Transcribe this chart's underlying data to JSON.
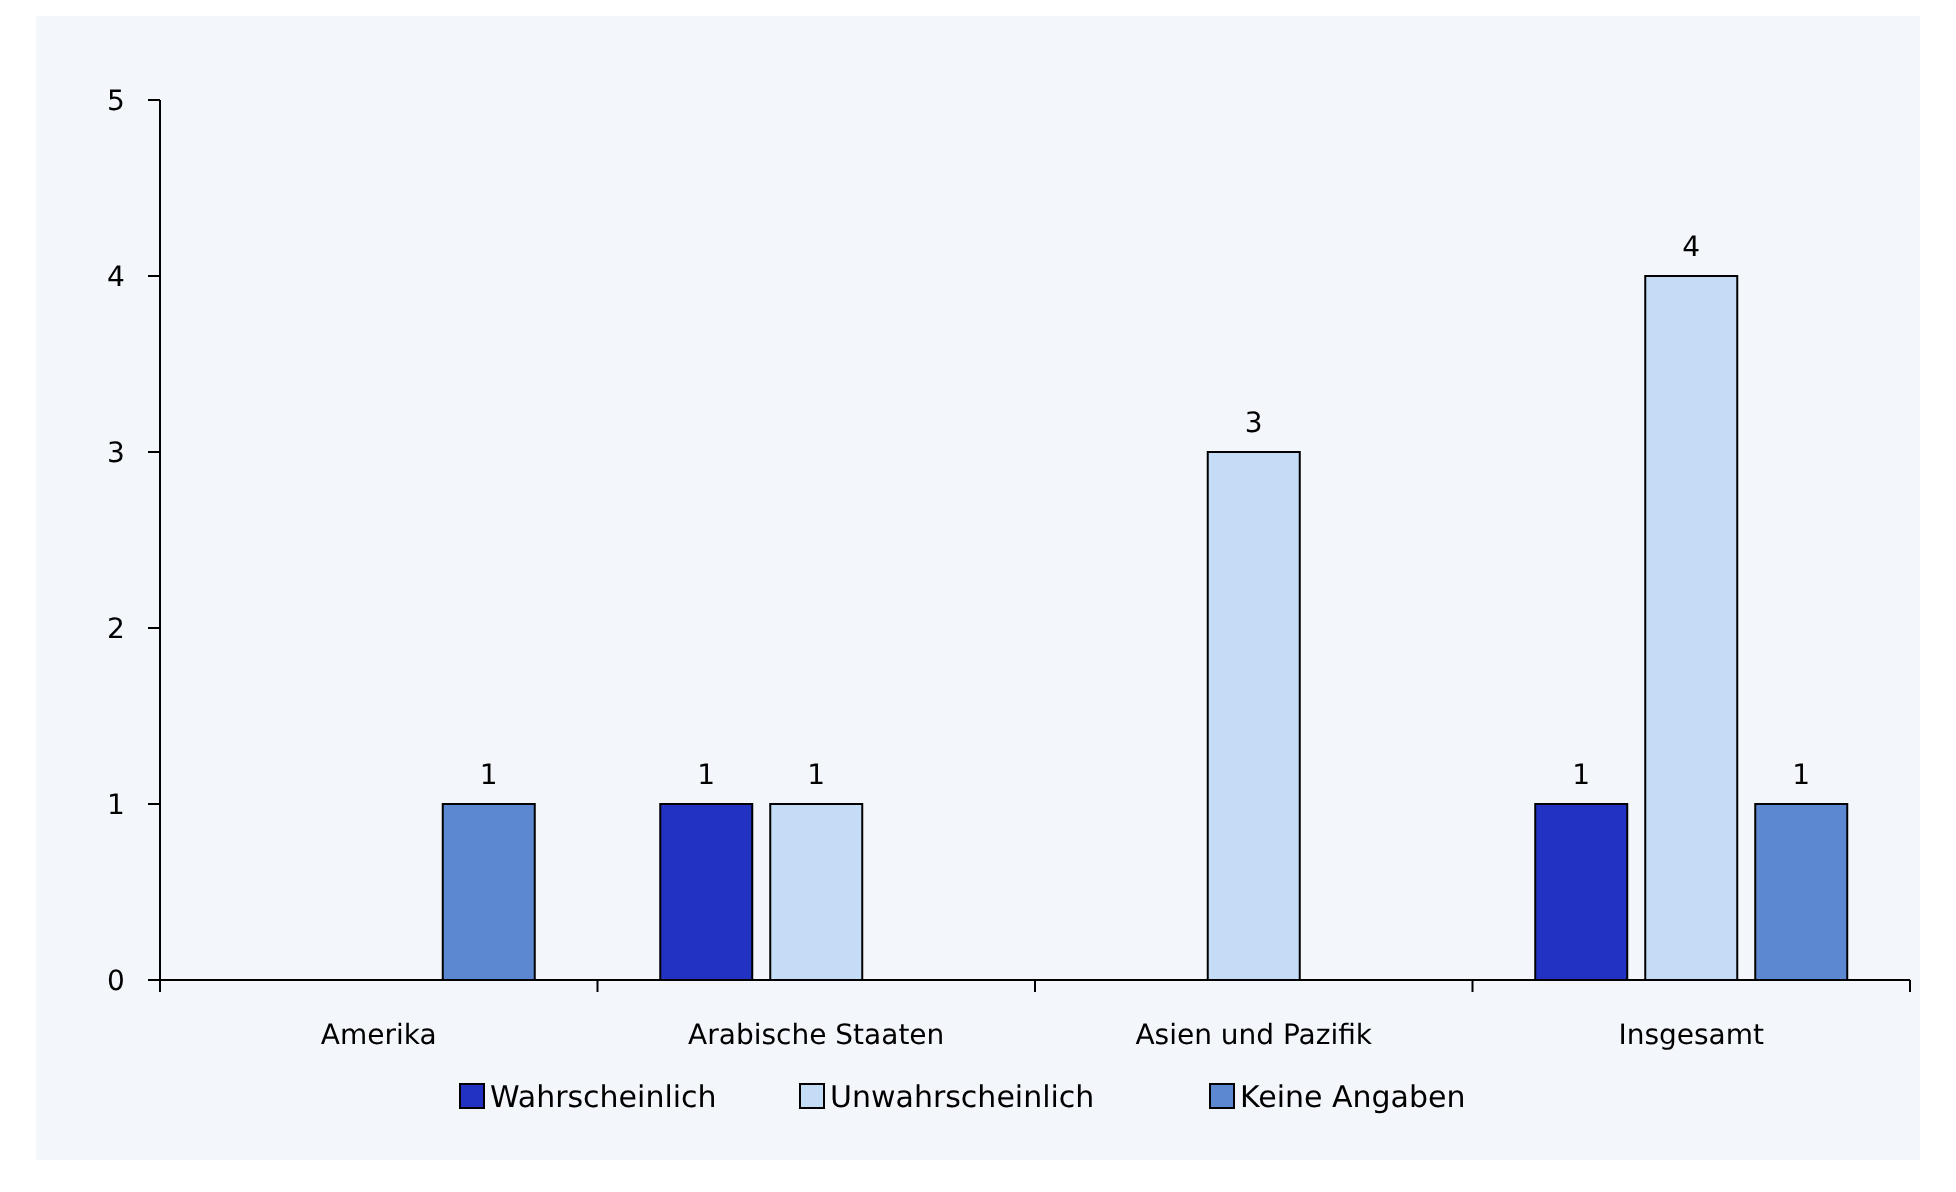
{
  "chart_data": {
    "type": "bar",
    "categories": [
      "Amerika",
      "Arabische Staaten",
      "Asien und Pazifik",
      "Insgesamt"
    ],
    "series": [
      {
        "name": "Wahrscheinlich",
        "color": "#2233c4",
        "values": [
          null,
          1,
          null,
          1
        ]
      },
      {
        "name": "Unwahrscheinlich",
        "color": "#c5dcf6",
        "values": [
          null,
          1,
          3,
          4
        ]
      },
      {
        "name": "Keine Angaben",
        "color": "#5b88d0",
        "values": [
          1,
          null,
          null,
          1
        ]
      }
    ],
    "ylim": [
      0,
      5
    ],
    "yticks": [
      0,
      1,
      2,
      3,
      4,
      5
    ],
    "grid": false,
    "legend": "bottom",
    "data_labels": true
  }
}
